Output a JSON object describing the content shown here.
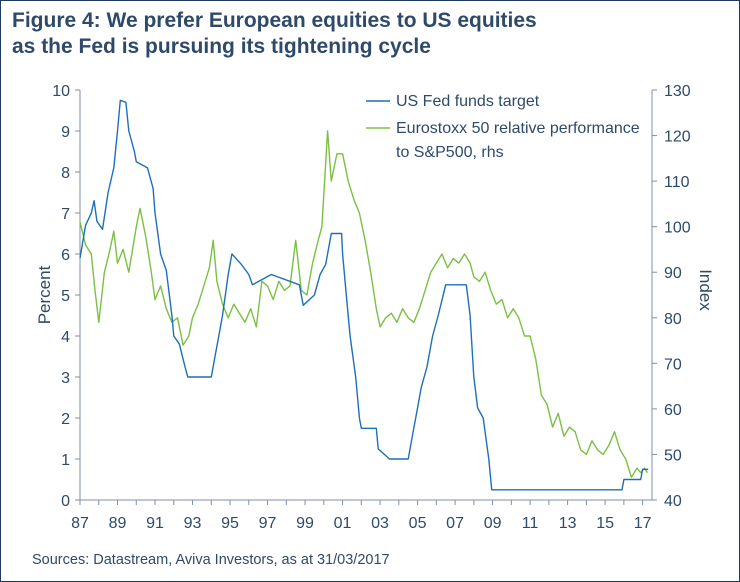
{
  "title": {
    "line1": "Figure 4: We prefer European equities to US equities",
    "line2": "as the Fed is pursuing its tightening cycle"
  },
  "sources": "Sources: Datastream, Aviva Investors, as at 31/03/2017",
  "colors": {
    "fed": "#1f6fb8",
    "euro": "#7bc043",
    "text": "#2e4a6b",
    "axis": "#7f8fa6"
  },
  "chart_data": {
    "type": "line",
    "grid": false,
    "legend_position": "top-right",
    "xlabel": "",
    "ylabel_left": "Percent",
    "ylabel_right": "Index",
    "x_range": [
      1987.0,
      2017.5
    ],
    "x_ticks": [
      1987,
      1989,
      1991,
      1993,
      1995,
      1997,
      1999,
      2001,
      2003,
      2005,
      2007,
      2009,
      2011,
      2013,
      2015,
      2017
    ],
    "x_tick_labels": [
      "87",
      "89",
      "91",
      "93",
      "95",
      "97",
      "99",
      "01",
      "03",
      "05",
      "07",
      "09",
      "11",
      "13",
      "15",
      "17"
    ],
    "ylim_left": [
      0,
      10
    ],
    "yticks_left": [
      0,
      1,
      2,
      3,
      4,
      5,
      6,
      7,
      8,
      9,
      10
    ],
    "ylim_right": [
      40,
      130
    ],
    "yticks_right": [
      40,
      50,
      60,
      70,
      80,
      90,
      100,
      110,
      120,
      130
    ],
    "series": [
      {
        "name": "US Fed funds target",
        "axis": "left",
        "points": [
          [
            1987.0,
            5.9
          ],
          [
            1987.3,
            6.7
          ],
          [
            1987.6,
            7.0
          ],
          [
            1987.75,
            7.3
          ],
          [
            1987.9,
            6.8
          ],
          [
            1988.2,
            6.6
          ],
          [
            1988.5,
            7.5
          ],
          [
            1988.8,
            8.1
          ],
          [
            1989.0,
            9.0
          ],
          [
            1989.15,
            9.75
          ],
          [
            1989.45,
            9.7
          ],
          [
            1989.6,
            9.0
          ],
          [
            1989.9,
            8.5
          ],
          [
            1990.0,
            8.25
          ],
          [
            1990.6,
            8.1
          ],
          [
            1990.9,
            7.6
          ],
          [
            1991.0,
            7.0
          ],
          [
            1991.3,
            6.0
          ],
          [
            1991.6,
            5.6
          ],
          [
            1991.9,
            4.5
          ],
          [
            1992.0,
            4.0
          ],
          [
            1992.3,
            3.8
          ],
          [
            1992.6,
            3.25
          ],
          [
            1992.75,
            3.0
          ],
          [
            1994.0,
            3.0
          ],
          [
            1994.2,
            3.5
          ],
          [
            1994.4,
            4.0
          ],
          [
            1994.6,
            4.5
          ],
          [
            1994.9,
            5.5
          ],
          [
            1995.1,
            6.0
          ],
          [
            1995.6,
            5.75
          ],
          [
            1996.0,
            5.5
          ],
          [
            1996.2,
            5.25
          ],
          [
            1997.2,
            5.5
          ],
          [
            1998.7,
            5.25
          ],
          [
            1998.9,
            4.75
          ],
          [
            1999.5,
            5.0
          ],
          [
            1999.8,
            5.5
          ],
          [
            2000.1,
            5.75
          ],
          [
            2000.4,
            6.5
          ],
          [
            2000.95,
            6.5
          ],
          [
            2001.0,
            6.0
          ],
          [
            2001.2,
            5.0
          ],
          [
            2001.4,
            4.0
          ],
          [
            2001.7,
            3.0
          ],
          [
            2001.9,
            2.0
          ],
          [
            2002.0,
            1.75
          ],
          [
            2002.8,
            1.75
          ],
          [
            2002.9,
            1.25
          ],
          [
            2003.5,
            1.0
          ],
          [
            2004.5,
            1.0
          ],
          [
            2004.7,
            1.5
          ],
          [
            2004.9,
            2.0
          ],
          [
            2005.2,
            2.75
          ],
          [
            2005.5,
            3.25
          ],
          [
            2005.8,
            4.0
          ],
          [
            2006.1,
            4.5
          ],
          [
            2006.5,
            5.25
          ],
          [
            2007.6,
            5.25
          ],
          [
            2007.8,
            4.5
          ],
          [
            2008.0,
            3.0
          ],
          [
            2008.2,
            2.25
          ],
          [
            2008.5,
            2.0
          ],
          [
            2008.8,
            1.0
          ],
          [
            2008.95,
            0.25
          ],
          [
            2015.9,
            0.25
          ],
          [
            2016.0,
            0.5
          ],
          [
            2016.9,
            0.5
          ],
          [
            2017.0,
            0.75
          ],
          [
            2017.3,
            0.75
          ]
        ]
      },
      {
        "name": "Eurostoxx 50 relative performance to S&P500, rhs",
        "axis": "right",
        "points": [
          [
            1987.0,
            101
          ],
          [
            1987.3,
            96
          ],
          [
            1987.6,
            94
          ],
          [
            1987.8,
            86
          ],
          [
            1988.0,
            79
          ],
          [
            1988.3,
            90
          ],
          [
            1988.6,
            95
          ],
          [
            1988.8,
            99
          ],
          [
            1989.0,
            92
          ],
          [
            1989.3,
            95
          ],
          [
            1989.6,
            90
          ],
          [
            1990.0,
            100
          ],
          [
            1990.2,
            104
          ],
          [
            1990.5,
            98
          ],
          [
            1990.8,
            90
          ],
          [
            1991.0,
            84
          ],
          [
            1991.3,
            87
          ],
          [
            1991.6,
            82
          ],
          [
            1991.9,
            79
          ],
          [
            1992.2,
            80
          ],
          [
            1992.5,
            74
          ],
          [
            1992.8,
            76
          ],
          [
            1993.0,
            80
          ],
          [
            1993.3,
            83
          ],
          [
            1993.6,
            87
          ],
          [
            1993.9,
            91
          ],
          [
            1994.1,
            97
          ],
          [
            1994.3,
            88
          ],
          [
            1994.6,
            83
          ],
          [
            1994.9,
            80
          ],
          [
            1995.2,
            83
          ],
          [
            1995.5,
            81
          ],
          [
            1995.8,
            79
          ],
          [
            1996.1,
            82
          ],
          [
            1996.4,
            78
          ],
          [
            1996.7,
            88
          ],
          [
            1997.0,
            87
          ],
          [
            1997.3,
            84
          ],
          [
            1997.6,
            88
          ],
          [
            1997.9,
            86
          ],
          [
            1998.2,
            87
          ],
          [
            1998.5,
            97
          ],
          [
            1998.8,
            86
          ],
          [
            1999.1,
            85
          ],
          [
            1999.4,
            92
          ],
          [
            1999.7,
            97
          ],
          [
            1999.9,
            100
          ],
          [
            2000.1,
            114
          ],
          [
            2000.2,
            121
          ],
          [
            2000.4,
            110
          ],
          [
            2000.7,
            116
          ],
          [
            2001.0,
            116
          ],
          [
            2001.3,
            110
          ],
          [
            2001.6,
            106
          ],
          [
            2001.9,
            103
          ],
          [
            2002.2,
            97
          ],
          [
            2002.5,
            90
          ],
          [
            2002.8,
            82
          ],
          [
            2003.0,
            78
          ],
          [
            2003.3,
            80
          ],
          [
            2003.6,
            81
          ],
          [
            2003.9,
            79
          ],
          [
            2004.2,
            82
          ],
          [
            2004.5,
            80
          ],
          [
            2004.8,
            79
          ],
          [
            2005.1,
            82
          ],
          [
            2005.4,
            86
          ],
          [
            2005.7,
            90
          ],
          [
            2006.0,
            92
          ],
          [
            2006.3,
            94
          ],
          [
            2006.6,
            91
          ],
          [
            2006.9,
            93
          ],
          [
            2007.2,
            92
          ],
          [
            2007.5,
            94
          ],
          [
            2007.8,
            92
          ],
          [
            2008.0,
            89
          ],
          [
            2008.3,
            88
          ],
          [
            2008.6,
            90
          ],
          [
            2008.9,
            86
          ],
          [
            2009.2,
            83
          ],
          [
            2009.5,
            84
          ],
          [
            2009.8,
            80
          ],
          [
            2010.1,
            82
          ],
          [
            2010.4,
            80
          ],
          [
            2010.7,
            76
          ],
          [
            2011.0,
            76
          ],
          [
            2011.3,
            71
          ],
          [
            2011.6,
            63
          ],
          [
            2011.9,
            61
          ],
          [
            2012.2,
            56
          ],
          [
            2012.5,
            59
          ],
          [
            2012.8,
            54
          ],
          [
            2013.1,
            56
          ],
          [
            2013.4,
            55
          ],
          [
            2013.7,
            51
          ],
          [
            2014.0,
            50
          ],
          [
            2014.3,
            53
          ],
          [
            2014.6,
            51
          ],
          [
            2014.9,
            50
          ],
          [
            2015.2,
            52
          ],
          [
            2015.5,
            55
          ],
          [
            2015.8,
            51
          ],
          [
            2016.1,
            49
          ],
          [
            2016.4,
            45
          ],
          [
            2016.7,
            47
          ],
          [
            2016.9,
            46
          ],
          [
            2017.1,
            47
          ],
          [
            2017.25,
            46
          ]
        ]
      }
    ]
  }
}
